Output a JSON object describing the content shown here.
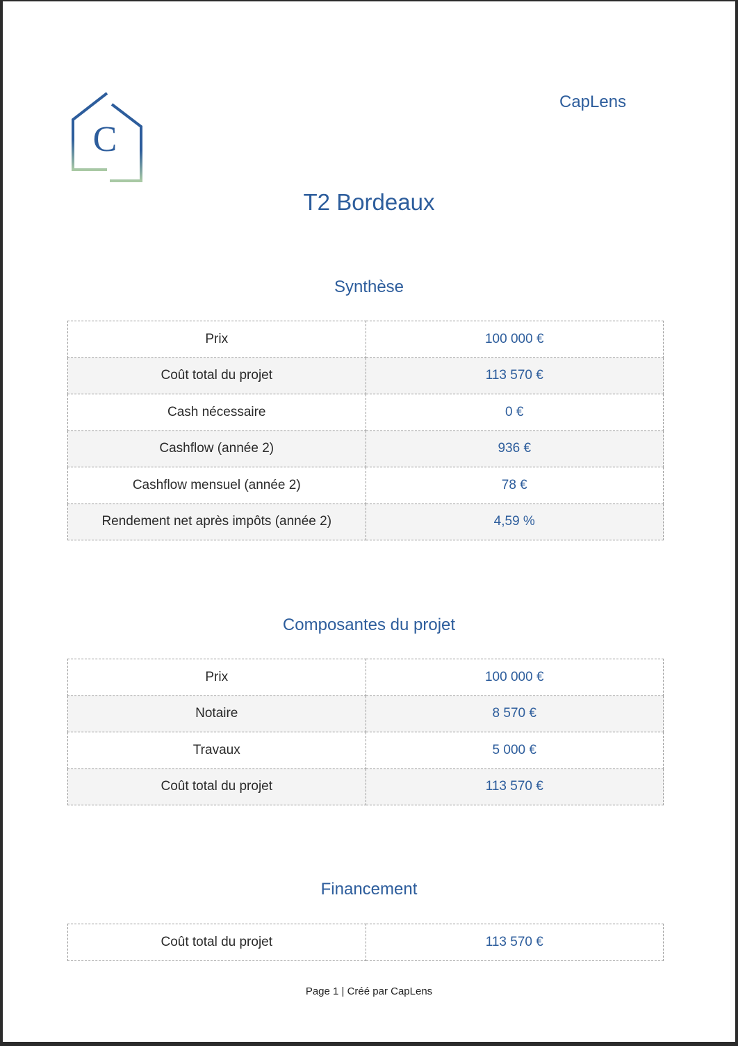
{
  "brand": "CapLens",
  "logo": {
    "letter": "C"
  },
  "title": "T2 Bordeaux",
  "colors": {
    "accent": "#2d5d9c",
    "logo_bottom": "#a9c9a4"
  },
  "synthese": {
    "heading": "Synthèse",
    "rows": [
      {
        "label": "Prix",
        "value": "100 000 €"
      },
      {
        "label": "Coût total du projet",
        "value": "113 570 €"
      },
      {
        "label": "Cash nécessaire",
        "value": "0 €"
      },
      {
        "label": "Cashflow (année 2)",
        "value": "936 €"
      },
      {
        "label": "Cashflow mensuel (année 2)",
        "value": "78 €"
      },
      {
        "label": "Rendement net après impôts (année 2)",
        "value": "4,59 %"
      }
    ]
  },
  "composantes": {
    "heading": "Composantes du projet",
    "rows": [
      {
        "label": "Prix",
        "value": "100 000 €"
      },
      {
        "label": "Notaire",
        "value": "8 570 €"
      },
      {
        "label": "Travaux",
        "value": "5 000 €"
      },
      {
        "label": "Coût total du projet",
        "value": "113 570 €"
      }
    ]
  },
  "financement": {
    "heading": "Financement",
    "rows": [
      {
        "label": "Coût total du projet",
        "value": "113 570 €"
      }
    ]
  },
  "footer": "Page 1 | Créé par CapLens"
}
